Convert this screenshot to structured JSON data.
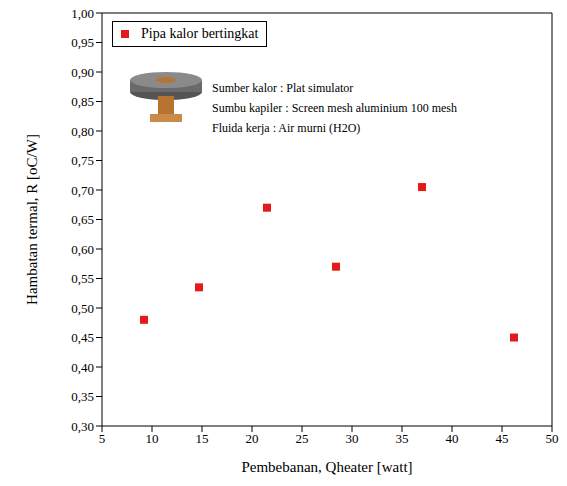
{
  "chart_data": {
    "type": "scatter",
    "xlabel": "Pembebanan, Qheater [watt]",
    "ylabel": "Hambatan termal, R [oC/W]",
    "x": [
      9.2,
      14.7,
      21.5,
      28.4,
      37,
      46.2
    ],
    "series": [
      {
        "name": "Pipa kalor bertingkat",
        "color": "#e31a1c",
        "marker": "square",
        "values": [
          0.48,
          0.535,
          0.67,
          0.57,
          0.705,
          0.45
        ]
      }
    ],
    "xlim": [
      5,
      50
    ],
    "xticks": [
      5,
      10,
      15,
      20,
      25,
      30,
      35,
      40,
      45,
      50
    ],
    "ylim": [
      0.3,
      1.0
    ],
    "yticks": [
      {
        "value": 0.3,
        "label": "0,30"
      },
      {
        "value": 0.35,
        "label": "0,35"
      },
      {
        "value": 0.4,
        "label": "0,40"
      },
      {
        "value": 0.45,
        "label": "0,45"
      },
      {
        "value": 0.5,
        "label": "0,50"
      },
      {
        "value": 0.55,
        "label": "0,55"
      },
      {
        "value": 0.6,
        "label": "0,60"
      },
      {
        "value": 0.65,
        "label": "0,65"
      },
      {
        "value": 0.7,
        "label": "0,70"
      },
      {
        "value": 0.75,
        "label": "0,75"
      },
      {
        "value": 0.8,
        "label": "0,80"
      },
      {
        "value": 0.85,
        "label": "0,85"
      },
      {
        "value": 0.9,
        "label": "0,90"
      },
      {
        "value": 0.95,
        "label": "0,95"
      },
      {
        "value": 1.0,
        "label": "1,00"
      }
    ],
    "annotations": [
      "Sumber kalor : Plat simulator",
      "Sumbu kapiler : Screen mesh aluminium 100 mesh",
      "Fluida kerja : Air murni (H2O)"
    ],
    "legend": "upper left",
    "grid": false
  }
}
